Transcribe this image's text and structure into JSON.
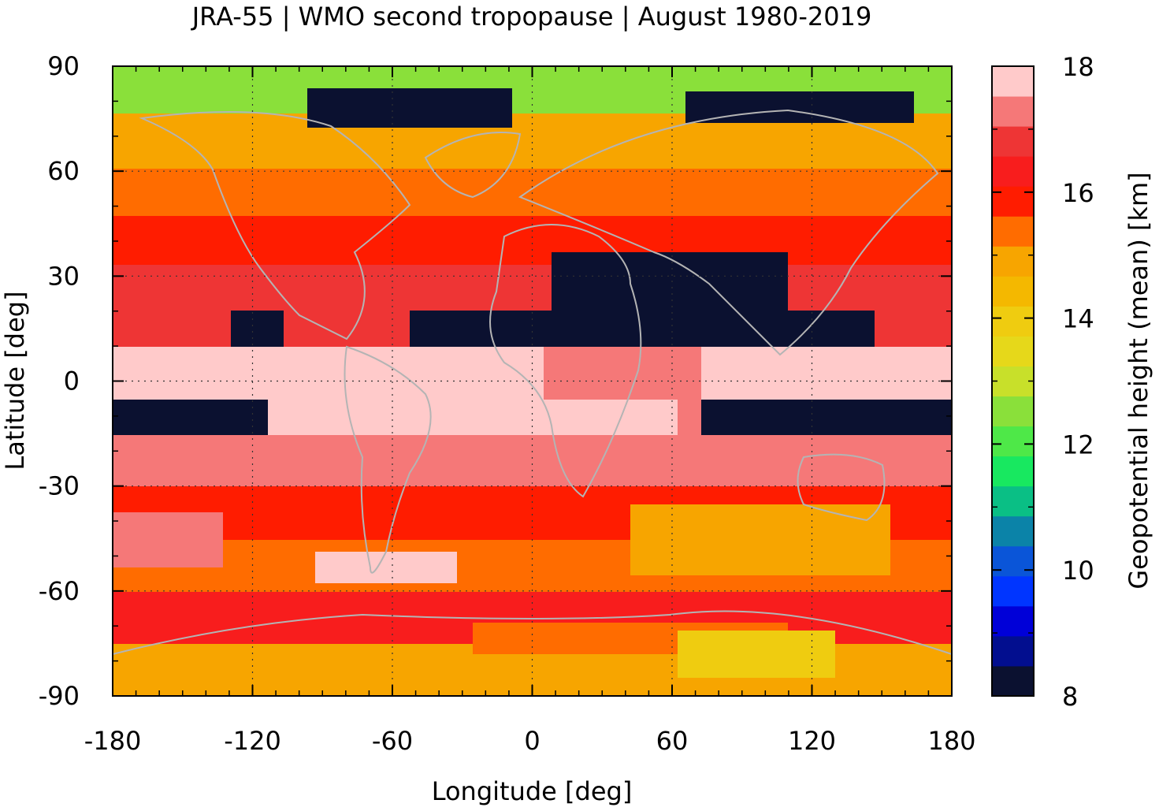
{
  "chart_data": {
    "type": "heatmap",
    "title": "JRA-55 | WMO second tropopause | August 1980-2019",
    "xlabel": "Longitude [deg]",
    "ylabel": "Latitude [deg]",
    "colorbar_label": "Geopotential height (mean) [km]",
    "xlim": [
      -180,
      180
    ],
    "ylim": [
      -90,
      90
    ],
    "xticks": [
      -180,
      -120,
      -60,
      0,
      60,
      120,
      180
    ],
    "yticks": [
      90,
      60,
      30,
      0,
      -30,
      -60,
      -90
    ],
    "clim": [
      8,
      18
    ],
    "cticks": [
      18,
      16,
      14,
      12,
      10,
      8
    ],
    "grid": true,
    "colorbar_levels": [
      "#0b1130",
      "#020e8f",
      "#0000d8",
      "#0035ff",
      "#0a55d8",
      "#0b83a8",
      "#0abf85",
      "#18e860",
      "#4ee848",
      "#8ae03a",
      "#c8e02a",
      "#e6d81a",
      "#efcc10",
      "#f4b800",
      "#f7a500",
      "#ff6c00",
      "#ff1c00",
      "#f81d1d",
      "#ee3535",
      "#f57878",
      "#ffcaca"
    ],
    "latitude_bands": [
      {
        "lat": [
          75,
          90
        ],
        "approx_km": 12.5
      },
      {
        "lat": [
          60,
          75
        ],
        "approx_km": 14.2
      },
      {
        "lat": [
          47,
          60
        ],
        "approx_km": 15.0
      },
      {
        "lat": [
          33,
          47
        ],
        "approx_km": 16.4
      },
      {
        "lat": [
          20,
          33
        ],
        "approx_km": 16.9
      },
      {
        "lat": [
          10,
          20
        ],
        "approx_km": 8.3
      },
      {
        "lat": [
          -5,
          10
        ],
        "approx_km": 17.9
      },
      {
        "lat": [
          -15,
          -5
        ],
        "approx_km": 8.3
      },
      {
        "lat": [
          -30,
          -15
        ],
        "approx_km": 17.0
      },
      {
        "lat": [
          -45,
          -30
        ],
        "approx_km": 16.2
      },
      {
        "lat": [
          -60,
          -45
        ],
        "approx_km": 15.3
      },
      {
        "lat": [
          -75,
          -60
        ],
        "approx_km": 16.2
      },
      {
        "lat": [
          -90,
          -75
        ],
        "approx_km": 15.0
      }
    ]
  }
}
